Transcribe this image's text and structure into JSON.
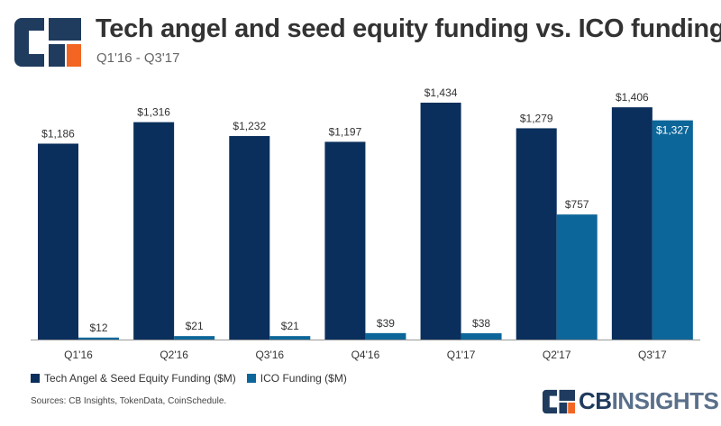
{
  "header": {
    "title": "Tech angel and seed equity funding vs. ICO funding",
    "subtitle": "Q1'16 - Q3'17"
  },
  "footer": {
    "source": "Sources: CB Insights, TokenData, CoinSchedule.",
    "brand_part1": "CB",
    "brand_part2": "INSIGHTS"
  },
  "logo": {
    "icon": "cb-insights-logo-icon"
  },
  "colors": {
    "series1": "#0a2f5c",
    "series2": "#0d6699",
    "accent": "#f26522"
  },
  "chart_data": {
    "type": "bar",
    "categories": [
      "Q1'16",
      "Q2'16",
      "Q3'16",
      "Q4'16",
      "Q1'17",
      "Q2'17",
      "Q3'17"
    ],
    "series": [
      {
        "name": "Tech Angel & Seed Equity Funding ($M)",
        "values": [
          1186,
          1316,
          1232,
          1197,
          1434,
          1279,
          1406
        ],
        "labels": [
          "$1,186",
          "$1,316",
          "$1,232",
          "$1,197",
          "$1,434",
          "$1,279",
          "$1,406"
        ]
      },
      {
        "name": "ICO Funding ($M)",
        "values": [
          12,
          21,
          21,
          39,
          38,
          757,
          1327
        ],
        "labels": [
          "$12",
          "$21",
          "$21",
          "$39",
          "$38",
          "$757",
          "$1,327"
        ]
      }
    ],
    "title": "Tech angel and seed equity funding vs. ICO funding",
    "subtitle": "Q1'16 - Q3'17",
    "xlabel": "",
    "ylabel": "",
    "ylim": [
      0,
      1434
    ],
    "grid": false,
    "legend": "bottom-left"
  }
}
